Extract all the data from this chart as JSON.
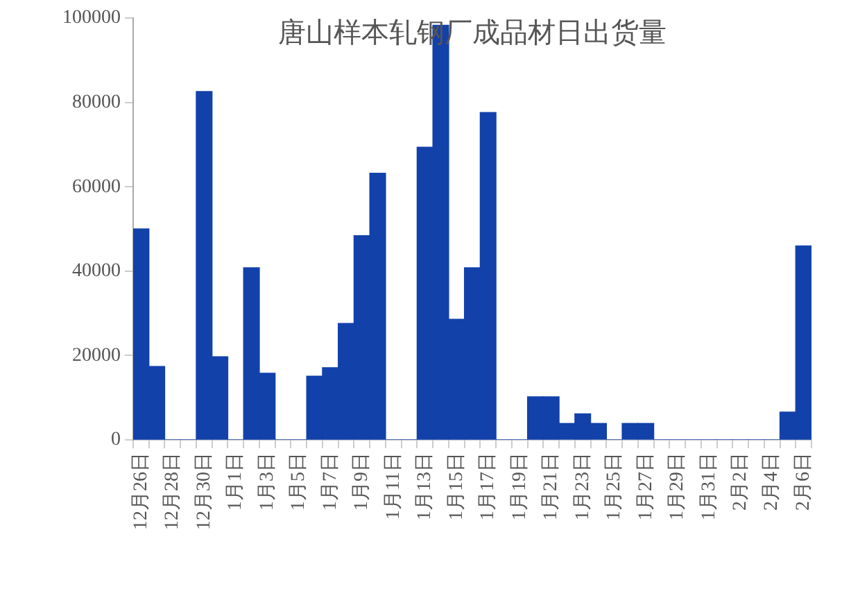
{
  "chart_data": {
    "type": "bar",
    "title": "唐山样本轧钢厂成品材日出货量",
    "categories": [
      "12月26日",
      null,
      "12月28日",
      null,
      "12月30日",
      null,
      "1月1日",
      null,
      "1月3日",
      null,
      "1月5日",
      null,
      "1月7日",
      null,
      "1月9日",
      null,
      "1月11日",
      null,
      "1月13日",
      null,
      "1月15日",
      null,
      "1月17日",
      null,
      "1月19日",
      null,
      "1月21日",
      null,
      "1月23日",
      null,
      "1月25日",
      null,
      "1月27日",
      null,
      "1月29日",
      null,
      "1月31日",
      null,
      "2月2日",
      null,
      "2月4日",
      null,
      "2月6日"
    ],
    "values": [
      50000,
      17400,
      0,
      0,
      82600,
      19700,
      0,
      40800,
      15800,
      0,
      0,
      15100,
      17100,
      27600,
      48400,
      63200,
      0,
      0,
      69400,
      98300,
      28600,
      40800,
      77600,
      0,
      0,
      10200,
      10200,
      3900,
      6200,
      3900,
      0,
      3900,
      3900,
      0,
      0,
      0,
      0,
      0,
      0,
      0,
      0,
      6600,
      46000
    ],
    "color": "#1241aa",
    "ylim": [
      0,
      100000
    ],
    "yticks": [
      0,
      20000,
      40000,
      60000,
      80000,
      100000
    ],
    "grid": false,
    "legend": false
  }
}
